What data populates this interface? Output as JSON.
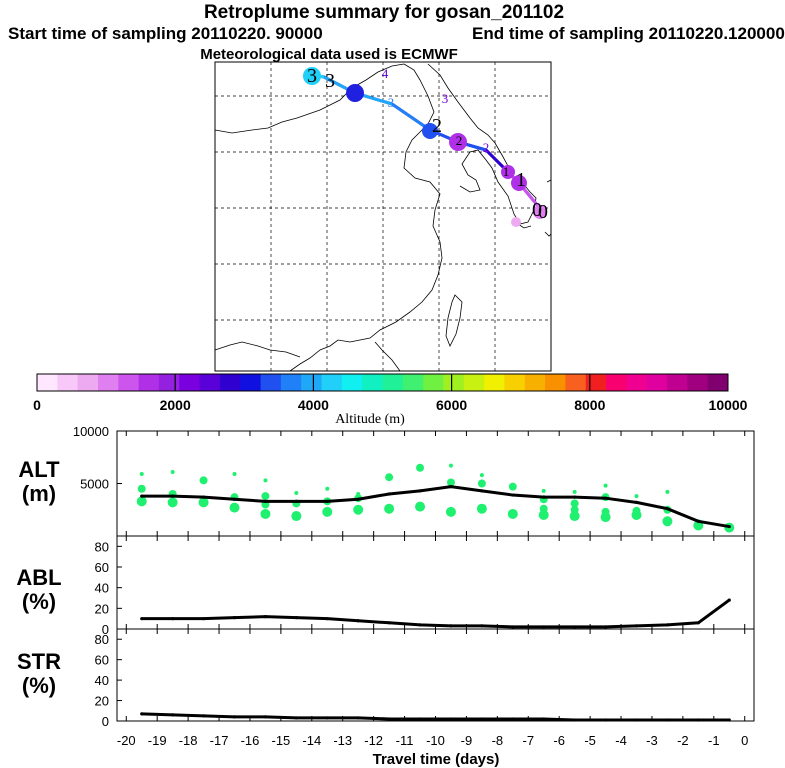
{
  "title": "Retroplume summary for gosan_201102",
  "start_label": "Start time of sampling 20110220. 90000",
  "end_label": "End time of sampling 20110220.120000",
  "met_label": "Meteorological data used is ECMWF",
  "colorbar": {
    "ticks": [
      "0",
      "2000",
      "4000",
      "6000",
      "8000",
      "10000"
    ],
    "label": "Altitude (m)",
    "colors": [
      "#ffe8ff",
      "#f8c8f8",
      "#eeaaf0",
      "#e080f0",
      "#cc55ee",
      "#b030e8",
      "#9420e0",
      "#7a00e0",
      "#5a00d8",
      "#3000d0",
      "#1010e0",
      "#2050f0",
      "#2080f8",
      "#20a8f8",
      "#20d0f8",
      "#10f0f0",
      "#10f0c0",
      "#20f098",
      "#40f070",
      "#70f040",
      "#a0f020",
      "#c8f010",
      "#f0f000",
      "#f8d000",
      "#f8b000",
      "#f89000",
      "#f86020",
      "#f02020",
      "#f80070",
      "#f00090",
      "#e000a0",
      "#c00090",
      "#a00080",
      "#800070"
    ]
  },
  "map_labels": [
    "3",
    "3",
    "4",
    "3",
    "3",
    "2",
    "2",
    "2",
    "1",
    "1",
    "0",
    "0"
  ],
  "chart_data": [
    {
      "type": "line",
      "panel": "ALT",
      "ylabel": "ALT (m)",
      "ylim": [
        0,
        10000
      ],
      "yticks": [
        "10000",
        "5000"
      ],
      "x": [
        -19.5,
        -18.5,
        -17.5,
        -16.5,
        -15.5,
        -14.5,
        -13.5,
        -12.5,
        -11.5,
        -10.5,
        -9.5,
        -8.5,
        -7.5,
        -6.5,
        -5.5,
        -4.5,
        -3.5,
        -2.5,
        -1.5,
        -0.5
      ],
      "values": [
        3800,
        3800,
        3700,
        3500,
        3300,
        3300,
        3300,
        3500,
        4000,
        4300,
        4700,
        4300,
        3900,
        3700,
        3700,
        3600,
        3200,
        2600,
        1400,
        900
      ]
    },
    {
      "type": "line",
      "panel": "ABL",
      "ylabel": "ABL (%)",
      "ylim": [
        0,
        90
      ],
      "yticks": [
        "80",
        "60",
        "40",
        "20",
        "0"
      ],
      "x": [
        -19.5,
        -18.5,
        -17.5,
        -16.5,
        -15.5,
        -14.5,
        -13.5,
        -12.5,
        -11.5,
        -10.5,
        -9.5,
        -8.5,
        -7.5,
        -6.5,
        -5.5,
        -4.5,
        -3.5,
        -2.5,
        -1.5,
        -0.5
      ],
      "values": [
        10,
        10,
        10,
        11,
        12,
        11,
        10,
        8,
        6,
        4,
        3,
        3,
        2,
        2,
        2,
        2,
        3,
        4,
        6,
        28
      ]
    },
    {
      "type": "line",
      "panel": "STR",
      "ylabel": "STR (%)",
      "ylim": [
        0,
        90
      ],
      "yticks": [
        "80",
        "60",
        "40",
        "20",
        "0"
      ],
      "xlabel": "Travel time (days)",
      "xticks": [
        "-20",
        "-19",
        "-18",
        "-17",
        "-16",
        "-15",
        "-14",
        "-13",
        "-12",
        "-11",
        "-10",
        "-9",
        "-8",
        "-7",
        "-6",
        "-5",
        "-4",
        "-3",
        "-2",
        "-1",
        "0"
      ],
      "x": [
        -19.5,
        -18.5,
        -17.5,
        -16.5,
        -15.5,
        -14.5,
        -13.5,
        -12.5,
        -11.5,
        -10.5,
        -9.5,
        -8.5,
        -7.5,
        -6.5,
        -5.5,
        -4.5,
        -3.5,
        -2.5,
        -1.5,
        -0.5
      ],
      "values": [
        7,
        6,
        5,
        4,
        4,
        3,
        3,
        3,
        2,
        2,
        2,
        2,
        2,
        2,
        1,
        1,
        1,
        1,
        1,
        1
      ]
    }
  ],
  "alt_spread": [
    [
      5900,
      4500,
      3300
    ],
    [
      6100,
      4000,
      3200
    ],
    [
      5300,
      3200
    ],
    [
      5900,
      3700,
      2700
    ],
    [
      5300,
      3800,
      3000,
      2100
    ],
    [
      4100,
      3100,
      1900
    ],
    [
      4500,
      3300,
      2300
    ],
    [
      4000,
      3600,
      2500
    ],
    [
      5600,
      2600
    ],
    [
      6500,
      2800
    ],
    [
      6700,
      5100,
      2300
    ],
    [
      5800,
      5000,
      2600
    ],
    [
      4700,
      2100
    ],
    [
      4300,
      3500,
      2600,
      2000
    ],
    [
      4200,
      3100,
      2500,
      1900
    ],
    [
      4800,
      3700,
      2300,
      1800
    ],
    [
      3800,
      2400,
      2000
    ],
    [
      4200,
      2500,
      1400
    ],
    [
      1200,
      1000
    ],
    [
      800
    ]
  ],
  "trajectory": [
    {
      "lon": 5,
      "lat": 5,
      "alt": 300
    },
    {
      "lon": 4.3,
      "lat": 4.5,
      "alt": 2200
    },
    {
      "lon": 3.5,
      "lat": 3.0,
      "alt": 1700
    },
    {
      "lon": 2.7,
      "lat": 1.7,
      "alt": 2400
    },
    {
      "lon": 2.0,
      "lat": 1.2,
      "alt": 2100
    },
    {
      "lon": 1.0,
      "lat": 0.5,
      "alt": 3000
    },
    {
      "lon": 0.0,
      "lat": 0.0,
      "alt": 3300
    }
  ]
}
